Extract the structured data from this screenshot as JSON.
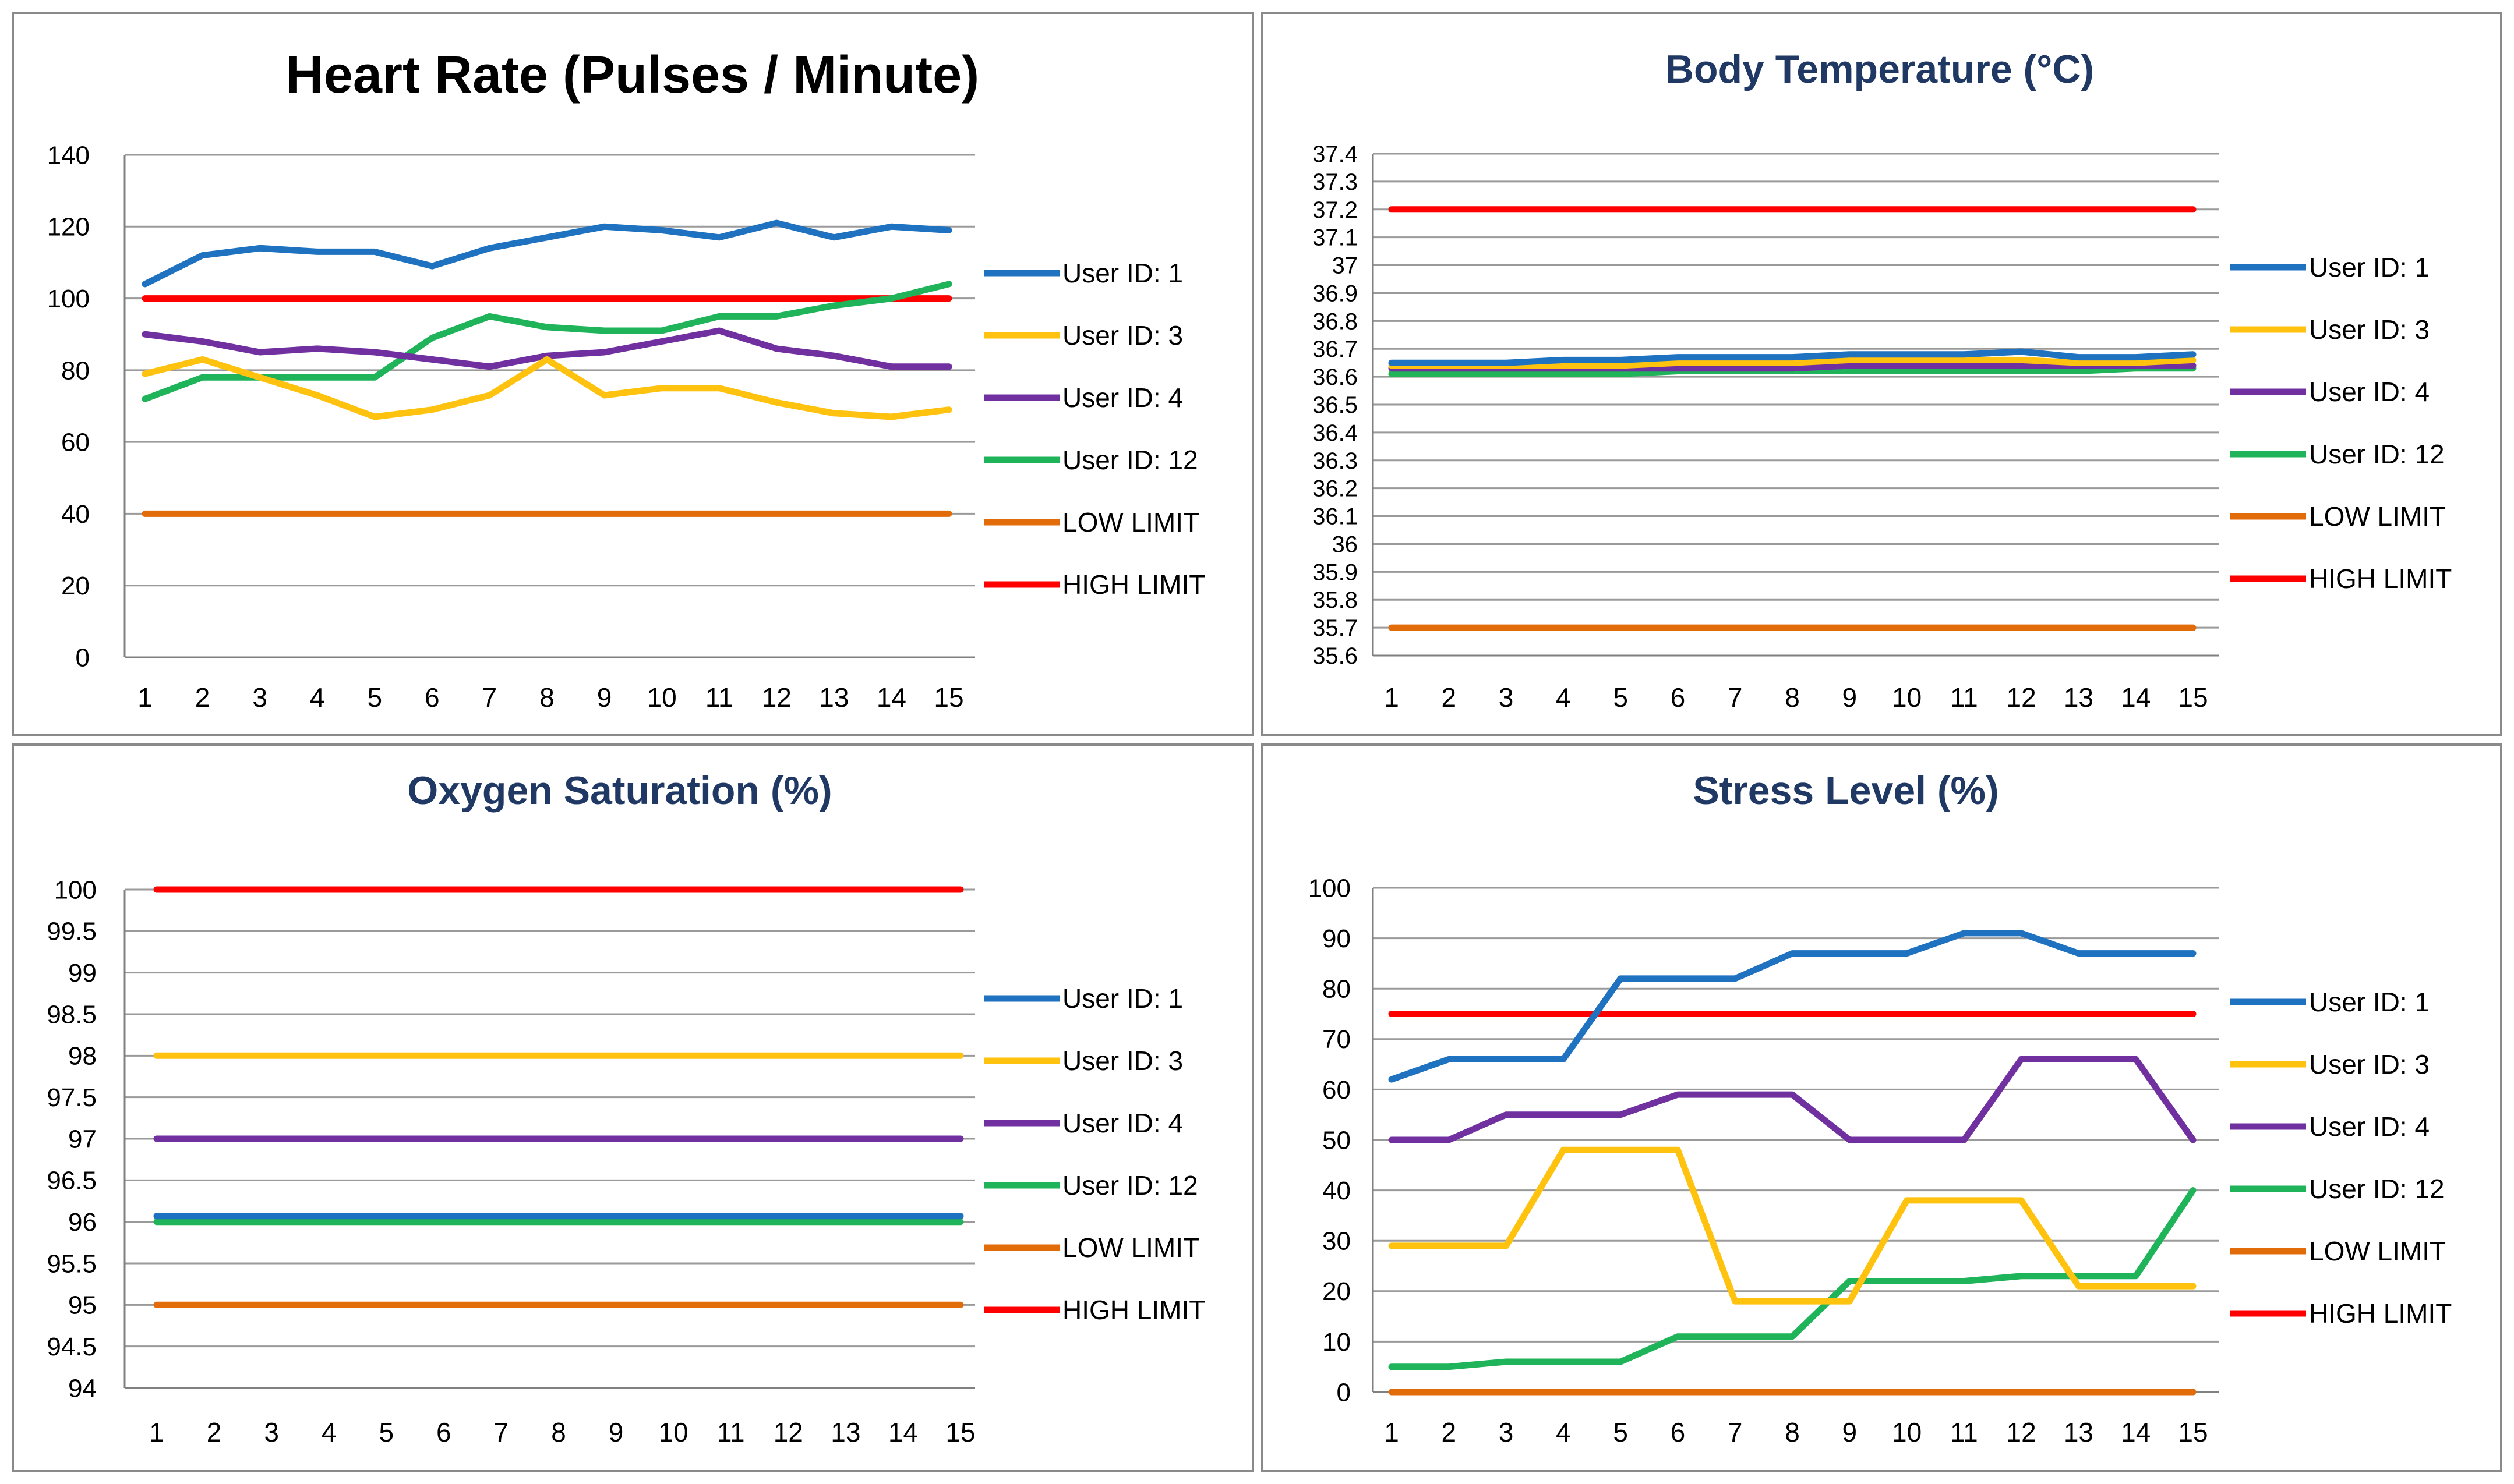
{
  "series_colors": {
    "User ID: 1": "#1f72c0",
    "User ID: 3": "#ffc20e",
    "User ID: 4": "#7030a0",
    "User ID: 12": "#1fb35a",
    "LOW LIMIT": "#e36c0a",
    "HIGH LIMIT": "#ff0000"
  },
  "chart_data": [
    {
      "type": "line",
      "title": "Heart Rate (Pulses / Minute)",
      "xlabel": "",
      "ylabel": "",
      "x": [
        1,
        2,
        3,
        4,
        5,
        6,
        7,
        8,
        9,
        10,
        11,
        12,
        13,
        14,
        15
      ],
      "ylim": [
        0,
        140
      ],
      "yticks": [
        0,
        20,
        40,
        60,
        80,
        100,
        120,
        140
      ],
      "ytick_labels": [
        "0",
        "20",
        "40",
        "60",
        "80",
        "100",
        "120",
        "140"
      ],
      "grid": true,
      "legend": "right",
      "series": [
        {
          "name": "User ID: 1",
          "values": [
            104,
            112,
            114,
            113,
            113,
            109,
            114,
            117,
            120,
            119,
            117,
            121,
            117,
            120,
            119
          ]
        },
        {
          "name": "User ID: 3",
          "values": [
            79,
            83,
            78,
            73,
            67,
            69,
            73,
            83,
            73,
            75,
            75,
            71,
            68,
            67,
            69
          ]
        },
        {
          "name": "User ID: 4",
          "values": [
            90,
            88,
            85,
            86,
            85,
            83,
            81,
            84,
            85,
            88,
            91,
            86,
            84,
            81,
            81
          ]
        },
        {
          "name": "User ID: 12",
          "values": [
            72,
            78,
            78,
            78,
            78,
            89,
            95,
            92,
            91,
            91,
            95,
            95,
            98,
            100,
            104
          ]
        },
        {
          "name": "LOW LIMIT",
          "values": [
            40,
            40,
            40,
            40,
            40,
            40,
            40,
            40,
            40,
            40,
            40,
            40,
            40,
            40,
            40
          ]
        },
        {
          "name": "HIGH LIMIT",
          "values": [
            100,
            100,
            100,
            100,
            100,
            100,
            100,
            100,
            100,
            100,
            100,
            100,
            100,
            100,
            100
          ]
        }
      ]
    },
    {
      "type": "line",
      "title": "Body Temperature (°C)",
      "xlabel": "",
      "ylabel": "",
      "x": [
        1,
        2,
        3,
        4,
        5,
        6,
        7,
        8,
        9,
        10,
        11,
        12,
        13,
        14,
        15
      ],
      "ylim": [
        35.6,
        37.4
      ],
      "yticks": [
        35.6,
        35.7,
        35.8,
        35.9,
        36.0,
        36.1,
        36.2,
        36.3,
        36.4,
        36.5,
        36.6,
        36.7,
        36.8,
        36.9,
        37.0,
        37.1,
        37.2,
        37.3,
        37.4
      ],
      "ytick_labels": [
        "35.6",
        "35.7",
        "35.8",
        "35.9",
        "36",
        "36.1",
        "36.2",
        "36.3",
        "36.4",
        "36.5",
        "36.6",
        "36.7",
        "36.8",
        "36.9",
        "37",
        "37.1",
        "37.2",
        "37.3",
        "37.4"
      ],
      "grid": true,
      "legend": "right",
      "series": [
        {
          "name": "User ID: 1",
          "values": [
            36.65,
            36.65,
            36.65,
            36.66,
            36.66,
            36.67,
            36.67,
            36.67,
            36.68,
            36.68,
            36.68,
            36.69,
            36.67,
            36.67,
            36.68
          ]
        },
        {
          "name": "User ID: 3",
          "values": [
            36.64,
            36.64,
            36.64,
            36.64,
            36.64,
            36.65,
            36.65,
            36.65,
            36.66,
            36.66,
            36.66,
            36.66,
            36.65,
            36.65,
            36.66
          ]
        },
        {
          "name": "User ID: 4",
          "values": [
            36.63,
            36.63,
            36.63,
            36.63,
            36.63,
            36.63,
            36.63,
            36.63,
            36.64,
            36.64,
            36.64,
            36.64,
            36.64,
            36.64,
            36.64
          ]
        },
        {
          "name": "User ID: 12",
          "values": [
            36.61,
            36.61,
            36.61,
            36.61,
            36.61,
            36.62,
            36.62,
            36.62,
            36.62,
            36.62,
            36.62,
            36.62,
            36.62,
            36.63,
            36.63
          ]
        },
        {
          "name": "LOW LIMIT",
          "values": [
            35.7,
            35.7,
            35.7,
            35.7,
            35.7,
            35.7,
            35.7,
            35.7,
            35.7,
            35.7,
            35.7,
            35.7,
            35.7,
            35.7,
            35.7
          ]
        },
        {
          "name": "HIGH LIMIT",
          "values": [
            37.2,
            37.2,
            37.2,
            37.2,
            37.2,
            37.2,
            37.2,
            37.2,
            37.2,
            37.2,
            37.2,
            37.2,
            37.2,
            37.2,
            37.2
          ]
        }
      ]
    },
    {
      "type": "line",
      "title": "Oxygen Saturation (%)",
      "xlabel": "",
      "ylabel": "",
      "x": [
        1,
        2,
        3,
        4,
        5,
        6,
        7,
        8,
        9,
        10,
        11,
        12,
        13,
        14,
        15
      ],
      "ylim": [
        94,
        100
      ],
      "yticks": [
        94,
        94.5,
        95,
        95.5,
        96,
        96.5,
        97,
        97.5,
        98,
        98.5,
        99,
        99.5,
        100
      ],
      "ytick_labels": [
        "94",
        "94.5",
        "95",
        "95.5",
        "96",
        "96.5",
        "97",
        "97.5",
        "98",
        "98.5",
        "99",
        "99.5",
        "100"
      ],
      "grid": true,
      "legend": "right",
      "series": [
        {
          "name": "User ID: 1",
          "values": [
            96.07,
            96.07,
            96.07,
            96.07,
            96.07,
            96.07,
            96.07,
            96.07,
            96.07,
            96.07,
            96.07,
            96.07,
            96.07,
            96.07,
            96.07
          ]
        },
        {
          "name": "User ID: 3",
          "values": [
            98,
            98,
            98,
            98,
            98,
            98,
            98,
            98,
            98,
            98,
            98,
            98,
            98,
            98,
            98
          ]
        },
        {
          "name": "User ID: 4",
          "values": [
            97,
            97,
            97,
            97,
            97,
            97,
            97,
            97,
            97,
            97,
            97,
            97,
            97,
            97,
            97
          ]
        },
        {
          "name": "User ID: 12",
          "values": [
            96,
            96,
            96,
            96,
            96,
            96,
            96,
            96,
            96,
            96,
            96,
            96,
            96,
            96,
            96
          ]
        },
        {
          "name": "LOW LIMIT",
          "values": [
            95,
            95,
            95,
            95,
            95,
            95,
            95,
            95,
            95,
            95,
            95,
            95,
            95,
            95,
            95
          ]
        },
        {
          "name": "HIGH LIMIT",
          "values": [
            100,
            100,
            100,
            100,
            100,
            100,
            100,
            100,
            100,
            100,
            100,
            100,
            100,
            100,
            100
          ]
        }
      ]
    },
    {
      "type": "line",
      "title": "Stress Level (%)",
      "xlabel": "",
      "ylabel": "",
      "x": [
        1,
        2,
        3,
        4,
        5,
        6,
        7,
        8,
        9,
        10,
        11,
        12,
        13,
        14,
        15
      ],
      "ylim": [
        0,
        100
      ],
      "yticks": [
        0,
        10,
        20,
        30,
        40,
        50,
        60,
        70,
        80,
        90,
        100
      ],
      "ytick_labels": [
        "0",
        "10",
        "20",
        "30",
        "40",
        "50",
        "60",
        "70",
        "80",
        "90",
        "100"
      ],
      "grid": true,
      "legend": "right",
      "series": [
        {
          "name": "User ID: 1",
          "values": [
            62,
            66,
            66,
            66,
            82,
            82,
            82,
            87,
            87,
            87,
            91,
            91,
            87,
            87,
            87
          ]
        },
        {
          "name": "User ID: 3",
          "values": [
            29,
            29,
            29,
            48,
            48,
            48,
            18,
            18,
            18,
            38,
            38,
            38,
            21,
            21,
            21
          ]
        },
        {
          "name": "User ID: 4",
          "values": [
            50,
            50,
            55,
            55,
            55,
            59,
            59,
            59,
            50,
            50,
            50,
            66,
            66,
            66,
            50
          ]
        },
        {
          "name": "User ID: 12",
          "values": [
            5,
            5,
            6,
            6,
            6,
            11,
            11,
            11,
            22,
            22,
            22,
            23,
            23,
            23,
            40
          ]
        },
        {
          "name": "LOW LIMIT",
          "values": [
            0,
            0,
            0,
            0,
            0,
            0,
            0,
            0,
            0,
            0,
            0,
            0,
            0,
            0,
            0
          ]
        },
        {
          "name": "HIGH LIMIT",
          "values": [
            75,
            75,
            75,
            75,
            75,
            75,
            75,
            75,
            75,
            75,
            75,
            75,
            75,
            75,
            75
          ]
        }
      ]
    }
  ]
}
